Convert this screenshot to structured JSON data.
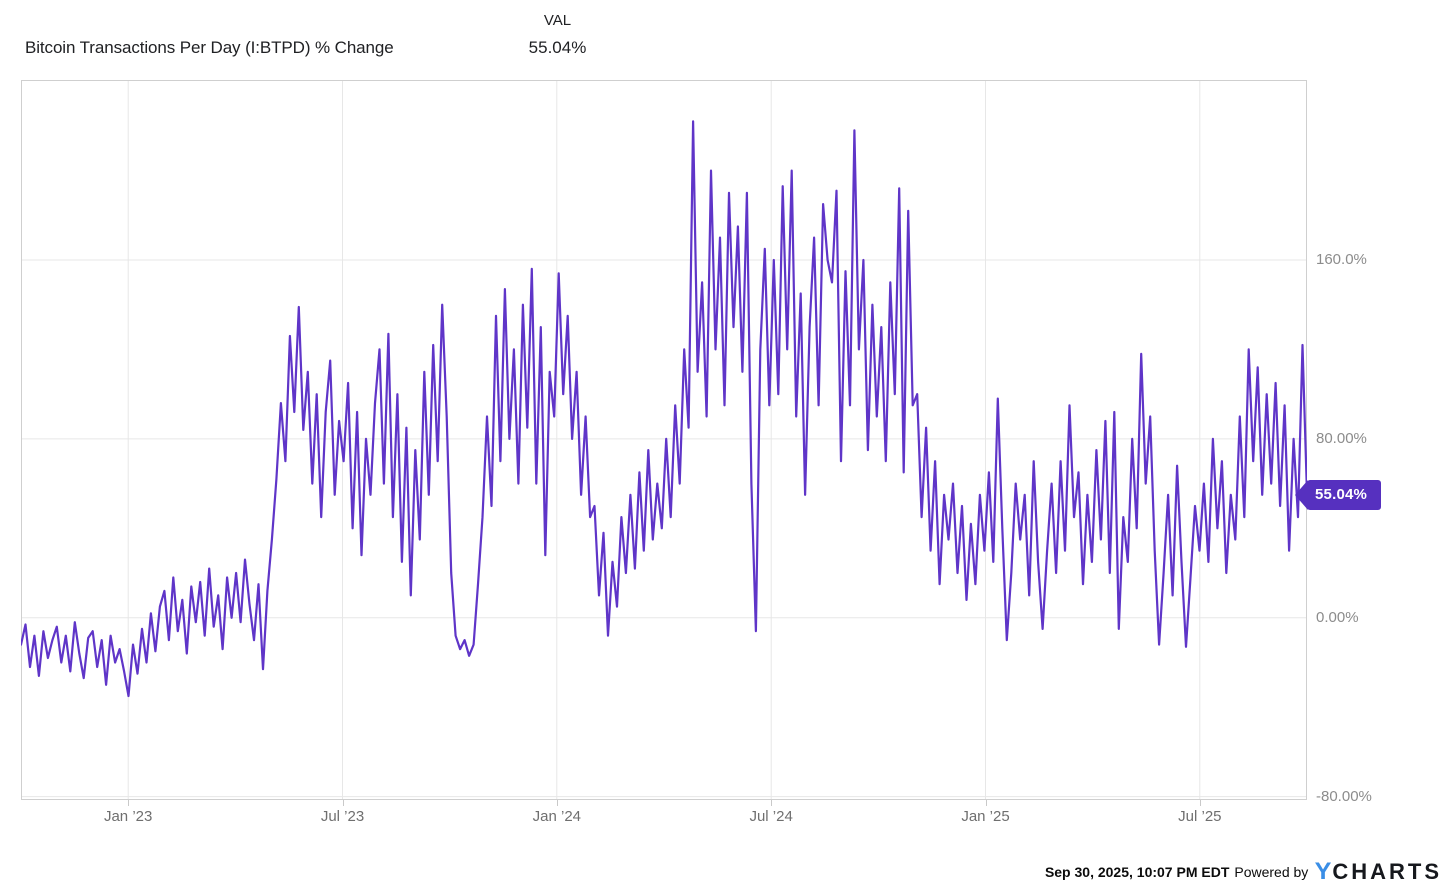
{
  "header": {
    "series_label": "Bitcoin Transactions Per Day (I:BTPD) % Change",
    "val_column_label": "VAL",
    "val_value": "55.04%"
  },
  "footer": {
    "timestamp": "Sep 30, 2025, 10:07 PM EDT",
    "powered_by": "Powered by",
    "logo_y": "Y",
    "logo_charts": "CHARTS"
  },
  "chart_data": {
    "type": "line",
    "title": "Bitcoin Transactions Per Day (I:BTPD) % Change",
    "legend_position": "none",
    "grid": true,
    "line_color": "#5F35C8",
    "badge_color": "#5630BF",
    "last_value": 55.04,
    "last_value_label": "55.04%",
    "y_axis": {
      "range": [
        -81.5,
        240.5
      ],
      "ticks": [
        {
          "value": 160,
          "label": "160.0%"
        },
        {
          "value": 80,
          "label": "80.00%"
        },
        {
          "value": 0,
          "label": "0.00%"
        },
        {
          "value": -80,
          "label": "-80.00%"
        }
      ]
    },
    "x_axis": {
      "total_months": 36,
      "ticks": [
        {
          "pos_months": 3,
          "label": "Jan ’23"
        },
        {
          "pos_months": 9,
          "label": "Jul ’23"
        },
        {
          "pos_months": 15,
          "label": "Jan ’24"
        },
        {
          "pos_months": 21,
          "label": "Jul ’24"
        },
        {
          "pos_months": 27,
          "label": "Jan ’25"
        },
        {
          "pos_months": 33,
          "label": "Jul ’25"
        }
      ]
    },
    "series": [
      {
        "name": "Bitcoin Transactions Per Day (I:BTPD) % Change",
        "unit": "%",
        "values": [
          -12,
          -3,
          -22,
          -8,
          -26,
          -6,
          -18,
          -10,
          -4,
          -20,
          -8,
          -24,
          -2,
          -16,
          -27,
          -9,
          -6,
          -22,
          -10,
          -30,
          -8,
          -20,
          -14,
          -24,
          -35,
          -12,
          -25,
          -5,
          -20,
          2,
          -15,
          5,
          12,
          -10,
          18,
          -6,
          8,
          -16,
          14,
          -2,
          16,
          -8,
          22,
          -4,
          10,
          -14,
          18,
          0,
          20,
          -2,
          26,
          6,
          -10,
          15,
          -23,
          12,
          35,
          62,
          96,
          70,
          126,
          92,
          139,
          84,
          110,
          60,
          100,
          45,
          92,
          115,
          55,
          88,
          70,
          105,
          40,
          92,
          28,
          80,
          55,
          96,
          120,
          60,
          127,
          45,
          100,
          25,
          85,
          10,
          75,
          35,
          110,
          55,
          122,
          70,
          140,
          90,
          20,
          -8,
          -14,
          -10,
          -17,
          -12,
          15,
          45,
          90,
          50,
          135,
          70,
          147,
          80,
          120,
          60,
          140,
          85,
          156,
          60,
          130,
          28,
          110,
          90,
          154,
          100,
          135,
          80,
          110,
          55,
          90,
          45,
          50,
          10,
          38,
          -8,
          25,
          5,
          45,
          20,
          55,
          22,
          65,
          30,
          75,
          35,
          60,
          40,
          80,
          45,
          95,
          60,
          120,
          85,
          222,
          110,
          150,
          90,
          200,
          120,
          170,
          95,
          190,
          130,
          175,
          110,
          190,
          60,
          -6,
          120,
          165,
          95,
          160,
          100,
          193,
          120,
          200,
          90,
          145,
          55,
          130,
          170,
          95,
          185,
          160,
          150,
          191,
          70,
          155,
          95,
          218,
          120,
          160,
          75,
          140,
          90,
          130,
          70,
          150,
          100,
          192,
          65,
          182,
          95,
          100,
          45,
          85,
          30,
          70,
          15,
          55,
          35,
          60,
          20,
          50,
          8,
          42,
          15,
          55,
          30,
          65,
          25,
          98,
          40,
          -10,
          20,
          60,
          35,
          55,
          10,
          70,
          25,
          -5,
          30,
          60,
          20,
          70,
          30,
          95,
          45,
          65,
          15,
          55,
          25,
          75,
          35,
          88,
          20,
          92,
          -5,
          45,
          25,
          80,
          40,
          118,
          60,
          90,
          30,
          -12,
          20,
          55,
          10,
          68,
          25,
          -13,
          18,
          50,
          30,
          60,
          25,
          80,
          40,
          70,
          20,
          55,
          35,
          90,
          45,
          120,
          70,
          112,
          55,
          100,
          60,
          105,
          50,
          95,
          30,
          80,
          45,
          122,
          55.04
        ]
      }
    ]
  }
}
